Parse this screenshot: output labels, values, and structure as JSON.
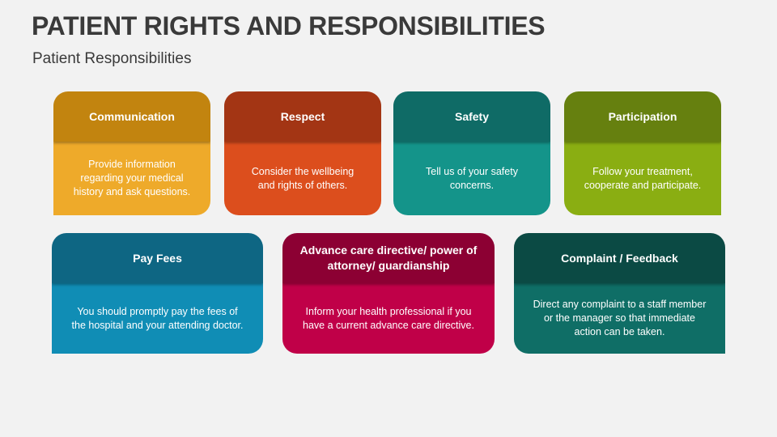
{
  "title": "PATIENT RIGHTS AND RESPONSIBILITIES",
  "subtitle": "Patient Responsibilities",
  "cards": [
    {
      "heading": "Communication",
      "text": "Provide information regarding your medical history and ask questions.",
      "header_color": "#c2840f",
      "body_color": "#eeaa2a"
    },
    {
      "heading": "Respect",
      "text": "Consider the wellbeing and rights of others.",
      "header_color": "#a33514",
      "body_color": "#dc4e1d"
    },
    {
      "heading": "Safety",
      "text": "Tell us of your safety concerns.",
      "header_color": "#0f6b66",
      "body_color": "#14948a"
    },
    {
      "heading": "Participation",
      "text": "Follow your treatment, cooperate and participate.",
      "header_color": "#66800f",
      "body_color": "#8aae12"
    },
    {
      "heading": "Pay Fees",
      "text": "You should promptly pay the fees of the hospital and your attending doctor.",
      "header_color": "#0e6683",
      "body_color": "#108db5"
    },
    {
      "heading": "Advance care directive/ power of attorney/ guardianship",
      "text": "Inform your health professional if you have a current advance care directive.",
      "header_color": "#8c0033",
      "body_color": "#c00048"
    },
    {
      "heading": "Complaint / Feedback",
      "text": "Direct any complaint to a staff member or the manager so that immediate action can be taken.",
      "header_color": "#0b4a44",
      "body_color": "#0f6e66"
    }
  ]
}
